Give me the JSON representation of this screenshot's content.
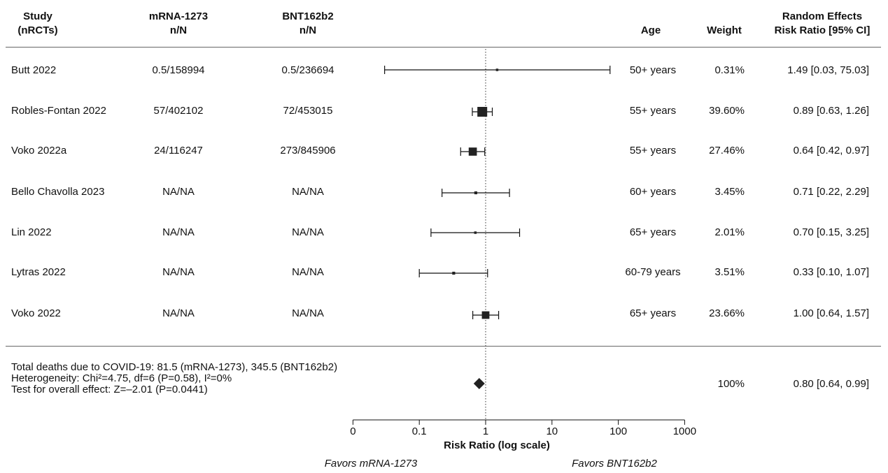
{
  "headers": {
    "study": [
      "Study",
      "(nRCTs)"
    ],
    "mrna": [
      "mRNA-1273",
      "n/N"
    ],
    "bnt": [
      "BNT162b2",
      "n/N"
    ],
    "age": "Age",
    "weight": "Weight",
    "effect": [
      "Random Effects",
      "Risk Ratio [95% CI]"
    ]
  },
  "chart_data": {
    "type": "forest",
    "xscale": "log",
    "xlabel": "Risk Ratio (log scale)",
    "x_ticks": [
      "0",
      "0.1",
      "1",
      "10",
      "100",
      "1000"
    ],
    "reference_line": 1,
    "favors_left": "Favors mRNA-1273",
    "favors_right": "Favors BNT162b2",
    "studies": [
      {
        "name": "Butt 2022",
        "mrna": "0.5/158994",
        "bnt": "0.5/236694",
        "age": "50+ years",
        "weight": "0.31%",
        "weight_value": 0.31,
        "rr": 1.49,
        "lo": 0.03,
        "hi": 75.03,
        "ci_text": "1.49 [0.03, 75.03]"
      },
      {
        "name": "Robles-Fontan 2022",
        "mrna": "57/402102",
        "bnt": "72/453015",
        "age": "55+ years",
        "weight": "39.60%",
        "weight_value": 39.6,
        "rr": 0.89,
        "lo": 0.63,
        "hi": 1.26,
        "ci_text": "0.89 [0.63, 1.26]"
      },
      {
        "name": "Voko 2022a",
        "mrna": "24/116247",
        "bnt": "273/845906",
        "age": "55+ years",
        "weight": "27.46%",
        "weight_value": 27.46,
        "rr": 0.64,
        "lo": 0.42,
        "hi": 0.97,
        "ci_text": "0.64 [0.42, 0.97]"
      },
      {
        "name": "Bello Chavolla 2023",
        "mrna": "NA/NA",
        "bnt": "NA/NA",
        "age": "60+ years",
        "weight": "3.45%",
        "weight_value": 3.45,
        "rr": 0.71,
        "lo": 0.22,
        "hi": 2.29,
        "ci_text": "0.71 [0.22, 2.29]"
      },
      {
        "name": "Lin 2022",
        "mrna": "NA/NA",
        "bnt": "NA/NA",
        "age": "65+ years",
        "weight": "2.01%",
        "weight_value": 2.01,
        "rr": 0.7,
        "lo": 0.15,
        "hi": 3.25,
        "ci_text": "0.70 [0.15, 3.25]"
      },
      {
        "name": "Lytras 2022",
        "mrna": "NA/NA",
        "bnt": "NA/NA",
        "age": "60-79 years",
        "weight": "3.51%",
        "weight_value": 3.51,
        "rr": 0.33,
        "lo": 0.1,
        "hi": 1.07,
        "ci_text": "0.33 [0.10, 1.07]"
      },
      {
        "name": "Voko 2022",
        "mrna": "NA/NA",
        "bnt": "NA/NA",
        "age": "65+ years",
        "weight": "23.66%",
        "weight_value": 23.66,
        "rr": 1.0,
        "lo": 0.64,
        "hi": 1.57,
        "ci_text": "1.00 [0.64, 1.57]"
      }
    ],
    "overall": {
      "rr": 0.8,
      "lo": 0.64,
      "hi": 0.99,
      "weight": "100%",
      "ci_text": "0.80 [0.64, 0.99]"
    }
  },
  "summary": {
    "total_deaths": "Total deaths due to COVID-19: 81.5 (mRNA-1273), 345.5 (BNT162b2)",
    "heterogeneity": "Heterogeneity: Chi²=4.75, df=6 (P=0.58), I²=0%",
    "overall_test": "Test for overall effect: Z=–2.01 (P=0.0441)"
  }
}
